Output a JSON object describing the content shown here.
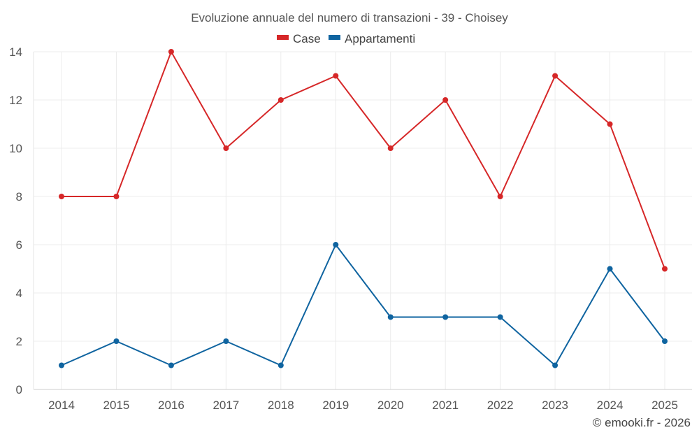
{
  "chart_data": {
    "type": "line",
    "title": "Evoluzione annuale del numero di transazioni - 39 - Choisey",
    "categories": [
      "2014",
      "2015",
      "2016",
      "2017",
      "2018",
      "2019",
      "2020",
      "2021",
      "2022",
      "2023",
      "2024",
      "2025"
    ],
    "series": [
      {
        "name": "Case",
        "color": "#d62728",
        "values": [
          8,
          8,
          14,
          10,
          12,
          13,
          10,
          12,
          8,
          13,
          11,
          5
        ]
      },
      {
        "name": "Appartamenti",
        "color": "#0f64a0",
        "values": [
          1,
          2,
          1,
          2,
          1,
          6,
          3,
          3,
          3,
          1,
          5,
          2
        ]
      }
    ],
    "ylim": [
      0,
      14
    ],
    "yticks": [
      "0",
      "2",
      "4",
      "6",
      "8",
      "10",
      "12",
      "14"
    ],
    "xlabel": "",
    "ylabel": "",
    "grid": true,
    "legend_position": "top-center"
  },
  "credit": "© emooki.fr - 2026"
}
